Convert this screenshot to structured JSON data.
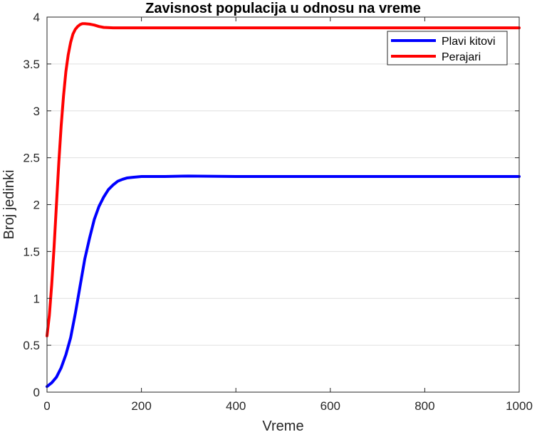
{
  "chart_data": {
    "type": "line",
    "title": "Zavisnost populacija u odnosu na vreme",
    "xlabel": "Vreme",
    "ylabel": "Broj jedinki",
    "xlim": [
      0,
      1000
    ],
    "ylim": [
      0,
      4
    ],
    "xticks": [
      0,
      200,
      400,
      600,
      800,
      1000
    ],
    "xtick_labels": [
      "0",
      "200",
      "400",
      "600",
      "800",
      "1000"
    ],
    "yticks": [
      0,
      0.5,
      1,
      1.5,
      2,
      2.5,
      3,
      3.5,
      4
    ],
    "ytick_labels": [
      "0",
      "0.5",
      "1",
      "1.5",
      "2",
      "2.5",
      "3",
      "3.5",
      "4"
    ],
    "grid": "horizontal",
    "legend_position": "top-right",
    "series": [
      {
        "name": "Plavi kitovi",
        "color": "#0000ff",
        "x": [
          0,
          10,
          20,
          30,
          40,
          50,
          60,
          70,
          80,
          90,
          100,
          110,
          120,
          130,
          140,
          150,
          160,
          170,
          180,
          200,
          250,
          300,
          400,
          500,
          600,
          700,
          800,
          900,
          1000
        ],
        "y": [
          0.06,
          0.1,
          0.16,
          0.26,
          0.4,
          0.58,
          0.84,
          1.13,
          1.42,
          1.64,
          1.84,
          1.98,
          2.08,
          2.16,
          2.21,
          2.25,
          2.27,
          2.285,
          2.29,
          2.3,
          2.3,
          2.305,
          2.3,
          2.3,
          2.3,
          2.3,
          2.3,
          2.3,
          2.3
        ]
      },
      {
        "name": "Perajari",
        "color": "#ff0000",
        "x": [
          0,
          5,
          10,
          15,
          20,
          25,
          30,
          35,
          40,
          45,
          50,
          55,
          60,
          65,
          70,
          75,
          80,
          90,
          100,
          110,
          120,
          140,
          160,
          200,
          300,
          400,
          500,
          600,
          700,
          800,
          900,
          1000
        ],
        "y": [
          0.6,
          0.82,
          1.15,
          1.55,
          2.0,
          2.45,
          2.84,
          3.16,
          3.42,
          3.6,
          3.73,
          3.82,
          3.87,
          3.9,
          3.92,
          3.93,
          3.93,
          3.925,
          3.915,
          3.9,
          3.89,
          3.885,
          3.885,
          3.885,
          3.885,
          3.885,
          3.885,
          3.885,
          3.885,
          3.885,
          3.885,
          3.885
        ]
      }
    ]
  }
}
